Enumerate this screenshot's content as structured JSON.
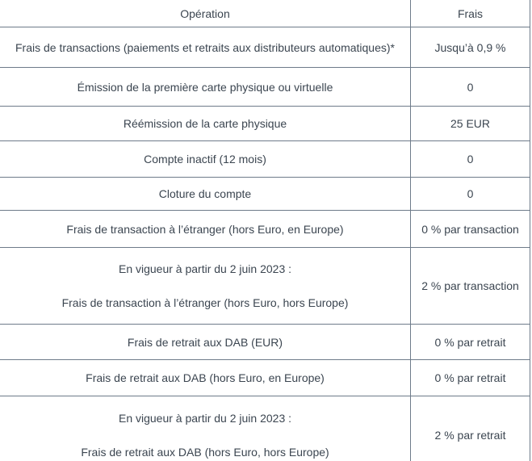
{
  "table": {
    "columns": {
      "operation": "Opération",
      "frais": "Frais"
    },
    "rows": [
      {
        "operation": [
          "Frais de transactions (paiements et retraits aux distributeurs automatiques)*"
        ],
        "frais": "Jusqu’à 0,9 %"
      },
      {
        "operation": [
          "Émission de la première carte physique ou virtuelle"
        ],
        "frais": "0"
      },
      {
        "operation": [
          "Réémission de la carte physique"
        ],
        "frais": "25 EUR"
      },
      {
        "operation": [
          "Compte inactif (12 mois)"
        ],
        "frais": "0"
      },
      {
        "operation": [
          "Cloture du compte"
        ],
        "frais": "0"
      },
      {
        "operation": [
          "Frais de transaction à l’étranger (hors Euro, en Europe)"
        ],
        "frais": "0 % par transaction"
      },
      {
        "operation": [
          "En vigueur à partir du 2 juin 2023 :",
          "Frais de transaction à l’étranger (hors Euro, hors Europe)"
        ],
        "frais": "2 % par transaction"
      },
      {
        "operation": [
          "Frais de retrait aux DAB (EUR)"
        ],
        "frais": "0 % par retrait"
      },
      {
        "operation": [
          "Frais de retrait aux DAB (hors Euro, en Europe)"
        ],
        "frais": "0 % par retrait"
      },
      {
        "operation": [
          "En vigueur à partir du 2 juin 2023 :",
          "Frais de retrait aux DAB (hors Euro, hors Europe)"
        ],
        "frais": "2 % par retrait"
      }
    ]
  },
  "colors": {
    "text": "#3b4550",
    "border": "#6e7b8a",
    "background": "#ffffff"
  }
}
